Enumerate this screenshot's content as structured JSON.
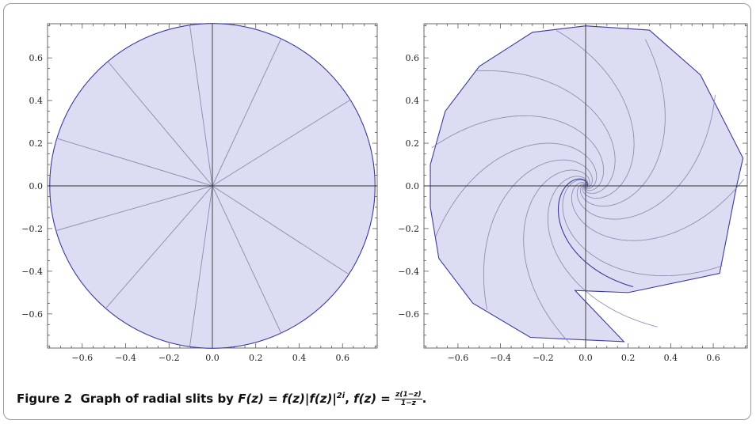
{
  "figure": {
    "label": "Figure 2",
    "caption_prefix": "Graph of radial slits by",
    "caption_formula_F": "F(z) = f(z)|f(z)|",
    "caption_formula_exp": "2i",
    "caption_formula_f_lhs": "f(z) =",
    "caption_frac_num": "z(1−z)",
    "caption_frac_den": "1−z",
    "caption_end": "."
  },
  "colors": {
    "fill": "#dcdcf3",
    "boundary": "#3a3a9a",
    "slit": "#8b8bb0",
    "axis": "#333333"
  },
  "chart_data": [
    {
      "type": "other",
      "description_kind": "unit disk with radial slits",
      "xlim": [
        -0.76,
        0.76
      ],
      "ylim": [
        -0.76,
        0.76
      ],
      "xticks": [
        -0.6,
        -0.4,
        -0.2,
        0.0,
        0.2,
        0.4,
        0.6
      ],
      "yticks": [
        -0.6,
        -0.4,
        -0.2,
        0.0,
        0.2,
        0.4,
        0.6
      ],
      "xtick_labels": [
        "−0.6",
        "−0.4",
        "−0.2",
        "0.0",
        "0.2",
        "0.4",
        "0.6"
      ],
      "ytick_labels": [
        "−0.6",
        "−0.4",
        "−0.2",
        "0.0",
        "0.2",
        "0.4",
        "0.6"
      ],
      "radius": 0.75,
      "slit_angles_deg": [
        0,
        32,
        65,
        98,
        130,
        163,
        196,
        229,
        262,
        295,
        327
      ]
    },
    {
      "type": "other",
      "description_kind": "image polygon with spiral slits",
      "xlim": [
        -0.76,
        0.76
      ],
      "ylim": [
        -0.76,
        0.76
      ],
      "xticks": [
        -0.6,
        -0.4,
        -0.2,
        0.0,
        0.2,
        0.4,
        0.6
      ],
      "yticks": [
        -0.6,
        -0.4,
        -0.2,
        0.0,
        0.2,
        0.4,
        0.6
      ],
      "xtick_labels": [
        "−0.6",
        "−0.4",
        "−0.2",
        "0.0",
        "0.2",
        "0.4",
        "0.6"
      ],
      "ytick_labels": [
        "−0.6",
        "−0.4",
        "−0.2",
        "0.0",
        "0.2",
        "0.4",
        "0.6"
      ],
      "polygon": [
        [
          0.0,
          0.75
        ],
        [
          0.3,
          0.73
        ],
        [
          0.54,
          0.52
        ],
        [
          0.74,
          0.13
        ],
        [
          0.71,
          0.0
        ],
        [
          0.63,
          -0.41
        ],
        [
          0.2,
          -0.5
        ],
        [
          -0.05,
          -0.49
        ],
        [
          0.18,
          -0.73
        ],
        [
          -0.26,
          -0.71
        ],
        [
          -0.53,
          -0.55
        ],
        [
          -0.69,
          -0.34
        ],
        [
          -0.73,
          -0.1
        ],
        [
          -0.73,
          0.1
        ],
        [
          -0.66,
          0.35
        ],
        [
          -0.5,
          0.56
        ],
        [
          -0.25,
          0.72
        ]
      ],
      "spiral_count": 11,
      "spiral_center": [
        0.0,
        0.0
      ]
    }
  ]
}
